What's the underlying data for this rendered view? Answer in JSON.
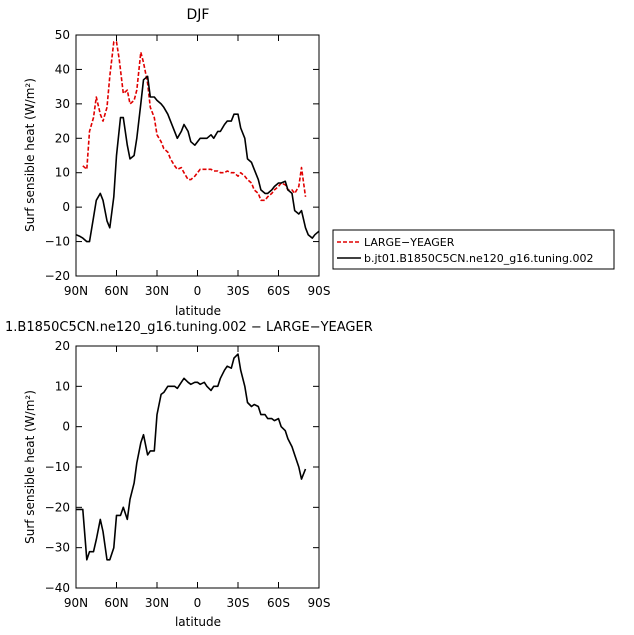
{
  "chart_data": [
    {
      "type": "line",
      "title": "DJF",
      "xlabel": "latitude",
      "ylabel": "Surf sensible heat (W/m²)",
      "xlim": [
        90,
        -90
      ],
      "ylim": [
        -20,
        50
      ],
      "xticks": [
        90,
        60,
        30,
        0,
        -30,
        -60,
        -90
      ],
      "xtick_labels": [
        "90N",
        "60N",
        "30N",
        "0",
        "30S",
        "60S",
        "90S"
      ],
      "yticks": [
        -20,
        -10,
        0,
        10,
        20,
        30,
        40,
        50
      ],
      "ytick_labels": [
        "−20",
        "−10",
        "0",
        "10",
        "20",
        "30",
        "40",
        "50"
      ],
      "legend": {
        "position": "right",
        "entries": [
          "LARGE−YEAGER",
          "b.jt01.B1850C5CN.ne120_g16.tuning.002"
        ]
      },
      "series": [
        {
          "name": "LARGE−YEAGER",
          "color": "#e00000",
          "dash": "dashed",
          "x": [
            85,
            82,
            80,
            77,
            75,
            72,
            70,
            67,
            65,
            62,
            60,
            58,
            55,
            52,
            50,
            47,
            45,
            42,
            40,
            37,
            35,
            32,
            30,
            27,
            25,
            22,
            20,
            17,
            15,
            12,
            10,
            7,
            5,
            2,
            0,
            -2,
            -5,
            -7,
            -10,
            -12,
            -15,
            -17,
            -20,
            -22,
            -25,
            -27,
            -30,
            -32,
            -35,
            -37,
            -40,
            -42,
            -45,
            -47,
            -50,
            -52,
            -55,
            -57,
            -60,
            -62,
            -65,
            -67,
            -70,
            -72,
            -75,
            -77,
            -80
          ],
          "y": [
            12,
            11,
            22,
            26,
            32,
            27,
            25,
            29,
            38,
            48,
            48,
            43,
            33,
            34,
            30,
            31,
            34,
            45,
            42,
            36,
            29,
            26,
            21,
            19,
            17,
            16,
            14,
            12,
            11,
            11.5,
            10,
            8,
            8,
            9,
            10,
            11,
            11,
            11,
            11,
            10.5,
            10.5,
            10,
            10,
            10.5,
            10,
            10,
            9,
            10,
            9,
            8,
            7,
            5,
            4,
            2,
            2,
            3,
            4,
            5,
            6,
            7,
            6.5,
            5,
            5,
            4,
            6,
            11.5,
            3
          ]
        },
        {
          "name": "b.jt01.B1850C5CN.ne120_g16.tuning.002",
          "color": "#000000",
          "dash": "solid",
          "x": [
            90,
            87,
            85,
            82,
            80,
            77,
            75,
            72,
            70,
            67,
            65,
            62,
            60,
            57,
            55,
            52,
            50,
            47,
            45,
            42,
            40,
            37,
            35,
            32,
            30,
            27,
            25,
            22,
            20,
            17,
            15,
            12,
            10,
            7,
            5,
            2,
            0,
            -2,
            -5,
            -7,
            -10,
            -12,
            -15,
            -17,
            -20,
            -22,
            -25,
            -27,
            -30,
            -32,
            -35,
            -37,
            -40,
            -42,
            -45,
            -47,
            -50,
            -52,
            -55,
            -57,
            -60,
            -62,
            -65,
            -67,
            -70,
            -72,
            -75,
            -77,
            -80,
            -82,
            -85,
            -87,
            -90
          ],
          "y": [
            -8,
            -8.5,
            -9,
            -10,
            -10,
            -3,
            2,
            4,
            2,
            -4,
            -6,
            3,
            15,
            26,
            26,
            18,
            14,
            15,
            20,
            30,
            37,
            38,
            32,
            32,
            31,
            30,
            29,
            27,
            25,
            22,
            20,
            22,
            24,
            22,
            19,
            18,
            19,
            20,
            20,
            20,
            21,
            20,
            22,
            22,
            24,
            25,
            25,
            27,
            27,
            23,
            20,
            14,
            13,
            11,
            8,
            5,
            4,
            4,
            5,
            6,
            7,
            7,
            7.5,
            5,
            4,
            -1,
            -2,
            -1,
            -6,
            -8,
            -9,
            -8,
            -7
          ]
        }
      ]
    },
    {
      "type": "line",
      "title": "1.B1850C5CN.ne120_g16.tuning.002 − LARGE−YEAGER",
      "xlabel": "latitude",
      "ylabel": "Surf sensible heat (W/m²)",
      "xlim": [
        90,
        -90
      ],
      "ylim": [
        -40,
        20
      ],
      "xticks": [
        90,
        60,
        30,
        0,
        -30,
        -60,
        -90
      ],
      "xtick_labels": [
        "90N",
        "60N",
        "30N",
        "0",
        "30S",
        "60S",
        "90S"
      ],
      "yticks": [
        -40,
        -30,
        -20,
        -10,
        0,
        10,
        20
      ],
      "ytick_labels": [
        "−40",
        "−30",
        "−20",
        "−10",
        "0",
        "10",
        "20"
      ],
      "series": [
        {
          "color": "#000000",
          "dash": "solid",
          "x": [
            90,
            87,
            85,
            82,
            80,
            77,
            75,
            72,
            70,
            67,
            65,
            62,
            60,
            57,
            55,
            52,
            50,
            47,
            45,
            42,
            40,
            37,
            35,
            32,
            30,
            27,
            25,
            22,
            20,
            17,
            15,
            12,
            10,
            7,
            5,
            2,
            0,
            -2,
            -5,
            -7,
            -10,
            -12,
            -15,
            -17,
            -20,
            -22,
            -25,
            -27,
            -30,
            -32,
            -35,
            -37,
            -40,
            -42,
            -45,
            -47,
            -50,
            -52,
            -55,
            -57,
            -60,
            -62,
            -65,
            -67,
            -70,
            -72,
            -75,
            -77,
            -80
          ],
          "y": [
            -20.5,
            -20.5,
            -20.5,
            -33,
            -31,
            -31,
            -28,
            -23,
            -26,
            -33,
            -33,
            -30,
            -22,
            -22,
            -20,
            -23,
            -18,
            -14,
            -9,
            -4,
            -2,
            -7,
            -6,
            -6,
            3,
            8,
            8.5,
            10,
            10,
            10,
            9.5,
            11,
            12,
            11,
            10.5,
            11,
            11,
            10.5,
            11,
            10,
            9,
            10,
            10,
            12,
            14,
            15,
            14.5,
            17,
            18,
            14,
            10,
            6,
            5,
            5.5,
            5,
            3,
            3,
            2,
            2,
            1.5,
            2,
            0,
            -1,
            -3,
            -5,
            -7,
            -10,
            -13,
            -10.5
          ]
        }
      ]
    }
  ]
}
